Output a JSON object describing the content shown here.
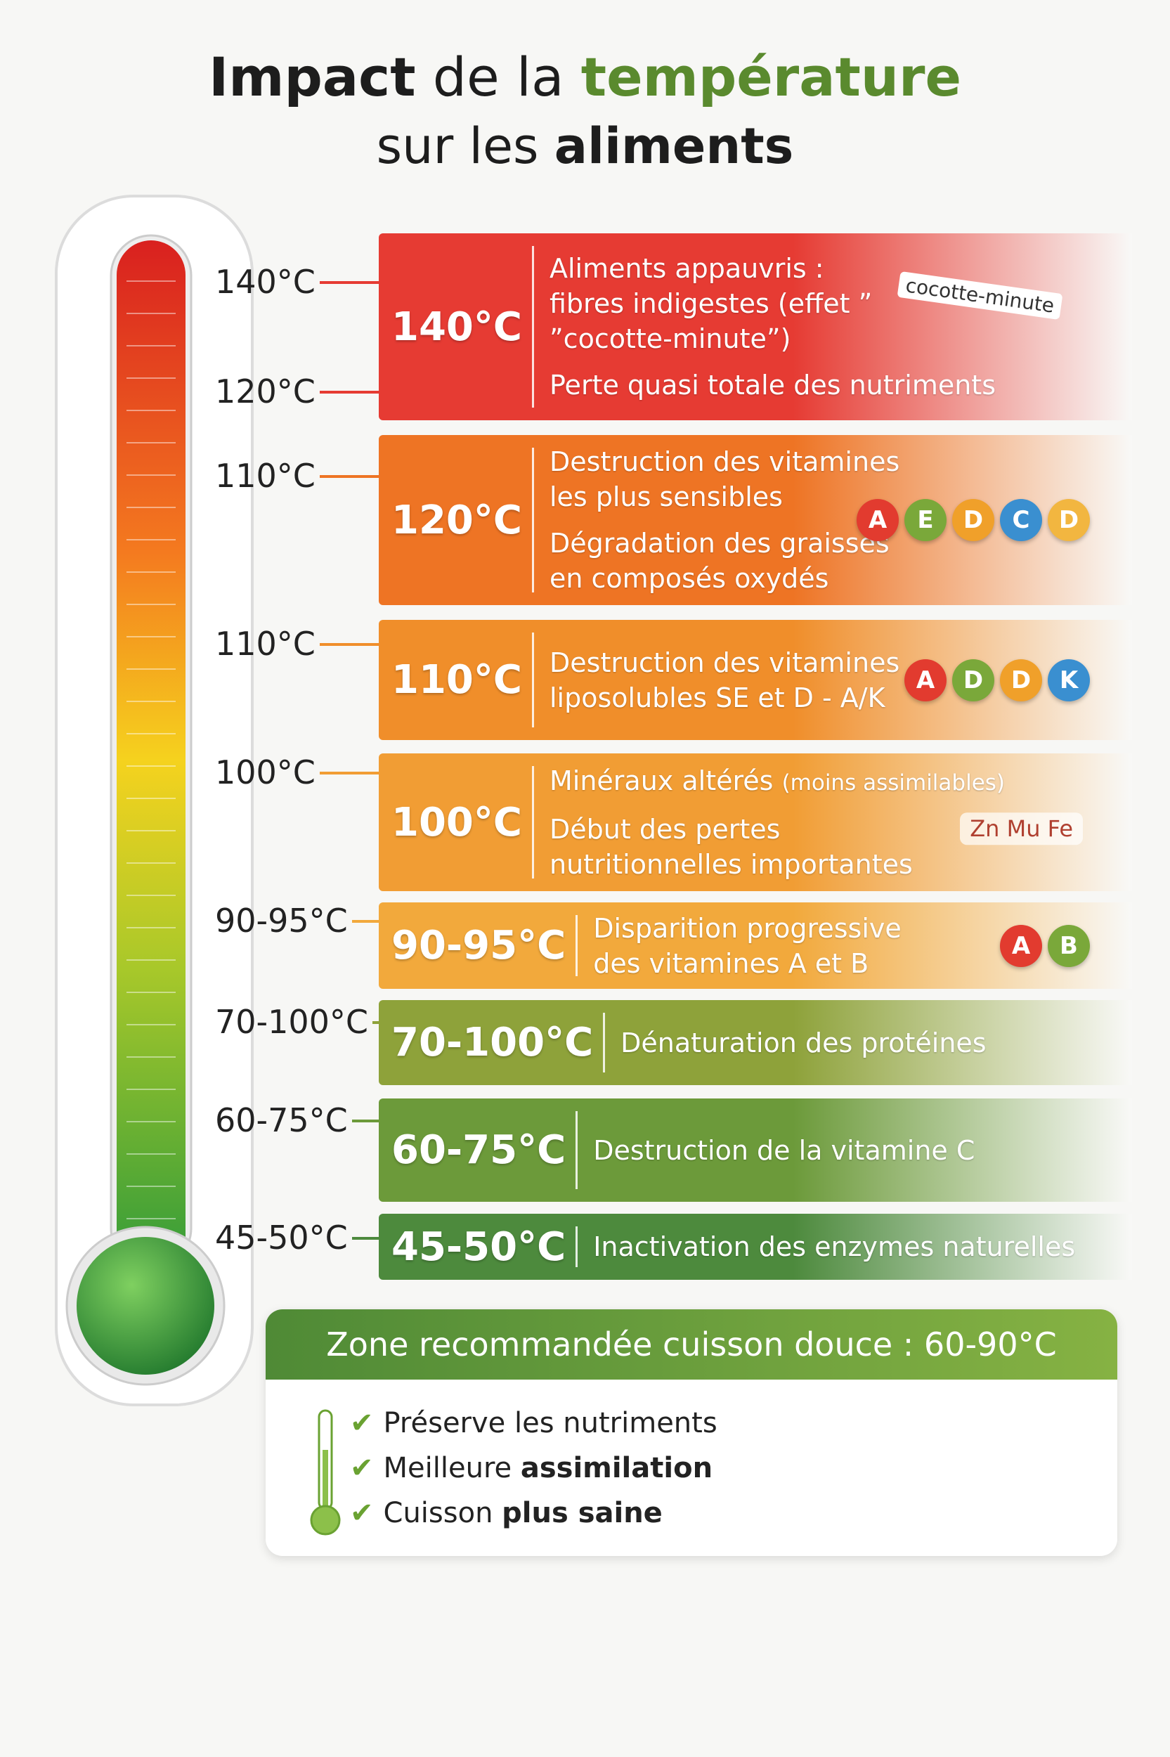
{
  "title": {
    "line1": [
      {
        "text": "Impact",
        "style": "bold"
      },
      {
        "text": "de la",
        "style": "normal"
      },
      {
        "text": "température",
        "style": "green"
      }
    ],
    "line2": [
      {
        "text": "sur les",
        "style": "normal"
      },
      {
        "text": "aliments",
        "style": "bold"
      }
    ]
  },
  "thermometer_labels": [
    "140°C",
    "120°C",
    "110°C",
    "110°C",
    "100°C",
    "90-95°C",
    "70-100°C",
    "60-75°C",
    "45-50°C"
  ],
  "bands": [
    {
      "temp": "140°C",
      "color": "#e63b33",
      "lines": [
        "Aliments appauvris :",
        "fibres indigestes (effet ”",
        "”cocotte-minute”)",
        "Perte quasi totale des nutriments"
      ],
      "sticker": "cocotte-minute"
    },
    {
      "temp": "120°C",
      "color": "#ee7424",
      "lines": [
        "Destruction des vitamines",
        "les plus sensibles",
        "Dégradation des graisses",
        "en composés oxydés"
      ],
      "icons": [
        "A",
        "E",
        "D",
        "C",
        "D"
      ]
    },
    {
      "temp": "110°C",
      "color": "#f08e2a",
      "lines": [
        "Destruction des vitamines",
        "liposolubles SE et D - A/K"
      ],
      "icons": [
        "A",
        "D",
        "D",
        "K"
      ]
    },
    {
      "temp": "100°C",
      "color": "#f19d34",
      "lines": [
        "Minéraux altérés",
        "Début des pertes",
        "nutritionnelles importantes"
      ],
      "note": "(moins assimilables)",
      "minerals": "Zn Mu Fe"
    },
    {
      "temp": "90-95°C",
      "color": "#f2a93c",
      "lines": [
        "Disparition progressive",
        "des vitamines A et B"
      ],
      "icons": [
        "A",
        "B"
      ]
    },
    {
      "temp": "70-100°C",
      "color": "#8ea23a",
      "lines": [
        "Dénaturation des protéines"
      ]
    },
    {
      "temp": "60-75°C",
      "color": "#6c9a3a",
      "lines": [
        "Destruction de la vitamine C"
      ]
    },
    {
      "temp": "45-50°C",
      "color": "#4d8a3d",
      "lines": [
        "Inactivation des enzymes naturelles"
      ]
    }
  ],
  "zone": {
    "title": "Zone recommandée cuisson douce : 60-90°C",
    "items": [
      [
        {
          "text": "Préserve les nutriments",
          "style": "normal"
        }
      ],
      [
        {
          "text": "Meilleure",
          "style": "normal"
        },
        {
          "text": "assimilation",
          "style": "bold"
        }
      ],
      [
        {
          "text": "Cuisson",
          "style": "normal"
        },
        {
          "text": "plus saine",
          "style": "bold"
        }
      ]
    ]
  }
}
